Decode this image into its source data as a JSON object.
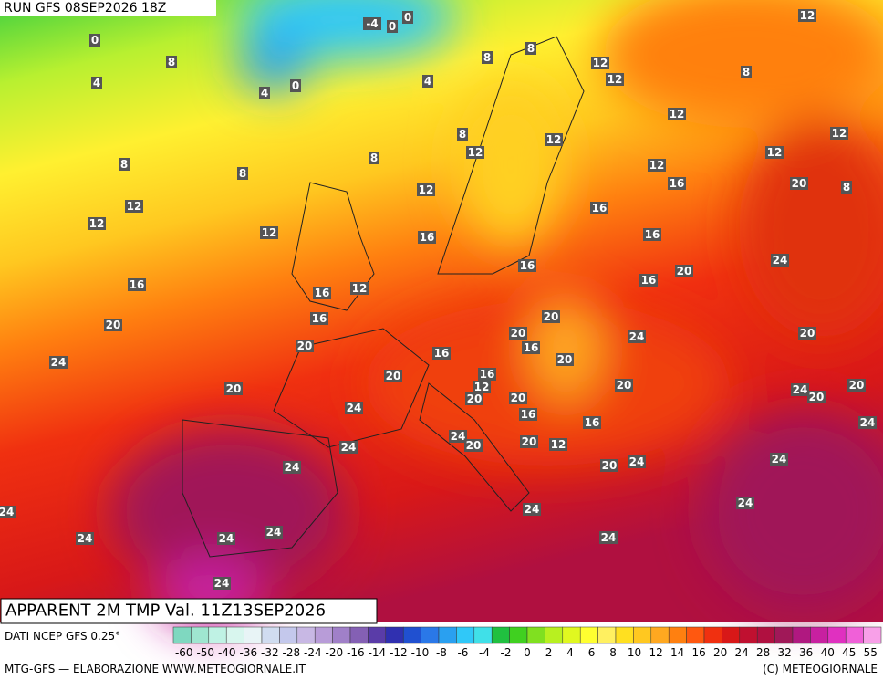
{
  "header": {
    "run": "RUN GFS 08SEP2026 18Z"
  },
  "map": {
    "title": "APPARENT 2M TMP Val. 11Z13SEP2026",
    "labels": [
      12,
      8,
      12,
      12,
      8,
      8,
      4,
      -4,
      0,
      0,
      0,
      8,
      4,
      4,
      0,
      12,
      12,
      12,
      12,
      8,
      8,
      8,
      8,
      12,
      12,
      12,
      16,
      20,
      8,
      12,
      12,
      12,
      16,
      16,
      16,
      16,
      20,
      16,
      24,
      16,
      16,
      12,
      16,
      20,
      20,
      20,
      16,
      20,
      24,
      20,
      16,
      20,
      24,
      20,
      16,
      12,
      20,
      20,
      20,
      20,
      24,
      20,
      20,
      24,
      16,
      16,
      24,
      24,
      20,
      24,
      20,
      12,
      20,
      24,
      24,
      24,
      24,
      24,
      24,
      24,
      24,
      24,
      24,
      24
    ]
  },
  "colorbar": {
    "source": "DATI NCEP GFS 0.25°",
    "ticks": [
      -60,
      -50,
      -40,
      -36,
      -32,
      -28,
      -24,
      -20,
      -16,
      -14,
      -12,
      -10,
      -8,
      -6,
      -4,
      -2,
      0,
      2,
      4,
      6,
      8,
      10,
      12,
      14,
      16,
      20,
      24,
      28,
      32,
      36,
      40,
      45,
      55
    ],
    "colors": [
      "#7fd8c0",
      "#9fe6d0",
      "#bff2e4",
      "#d8f6ee",
      "#e8f4f6",
      "#d0dcf0",
      "#c4c8ec",
      "#c8b8e4",
      "#b89cd8",
      "#a080c8",
      "#8460b4",
      "#5a3ca8",
      "#3030b0",
      "#2050d0",
      "#2a78e8",
      "#2aa0f0",
      "#30c8f8",
      "#40e0e8",
      "#20c040",
      "#40d020",
      "#80e020",
      "#b8f020",
      "#e0f820",
      "#ffff30",
      "#fff060",
      "#ffe020",
      "#ffc820",
      "#ffa820",
      "#ff8010",
      "#ff5810",
      "#f03010",
      "#d81818",
      "#c01030",
      "#b01040",
      "#a01858",
      "#b01880",
      "#c820a0",
      "#e030c0",
      "#f060d8",
      "#f8a0e8"
    ]
  },
  "footer": {
    "left": "MTG-GFS — ELABORAZIONE WWW.METEOGIORNALE.IT",
    "right": "(C) METEOGIORNALE"
  }
}
